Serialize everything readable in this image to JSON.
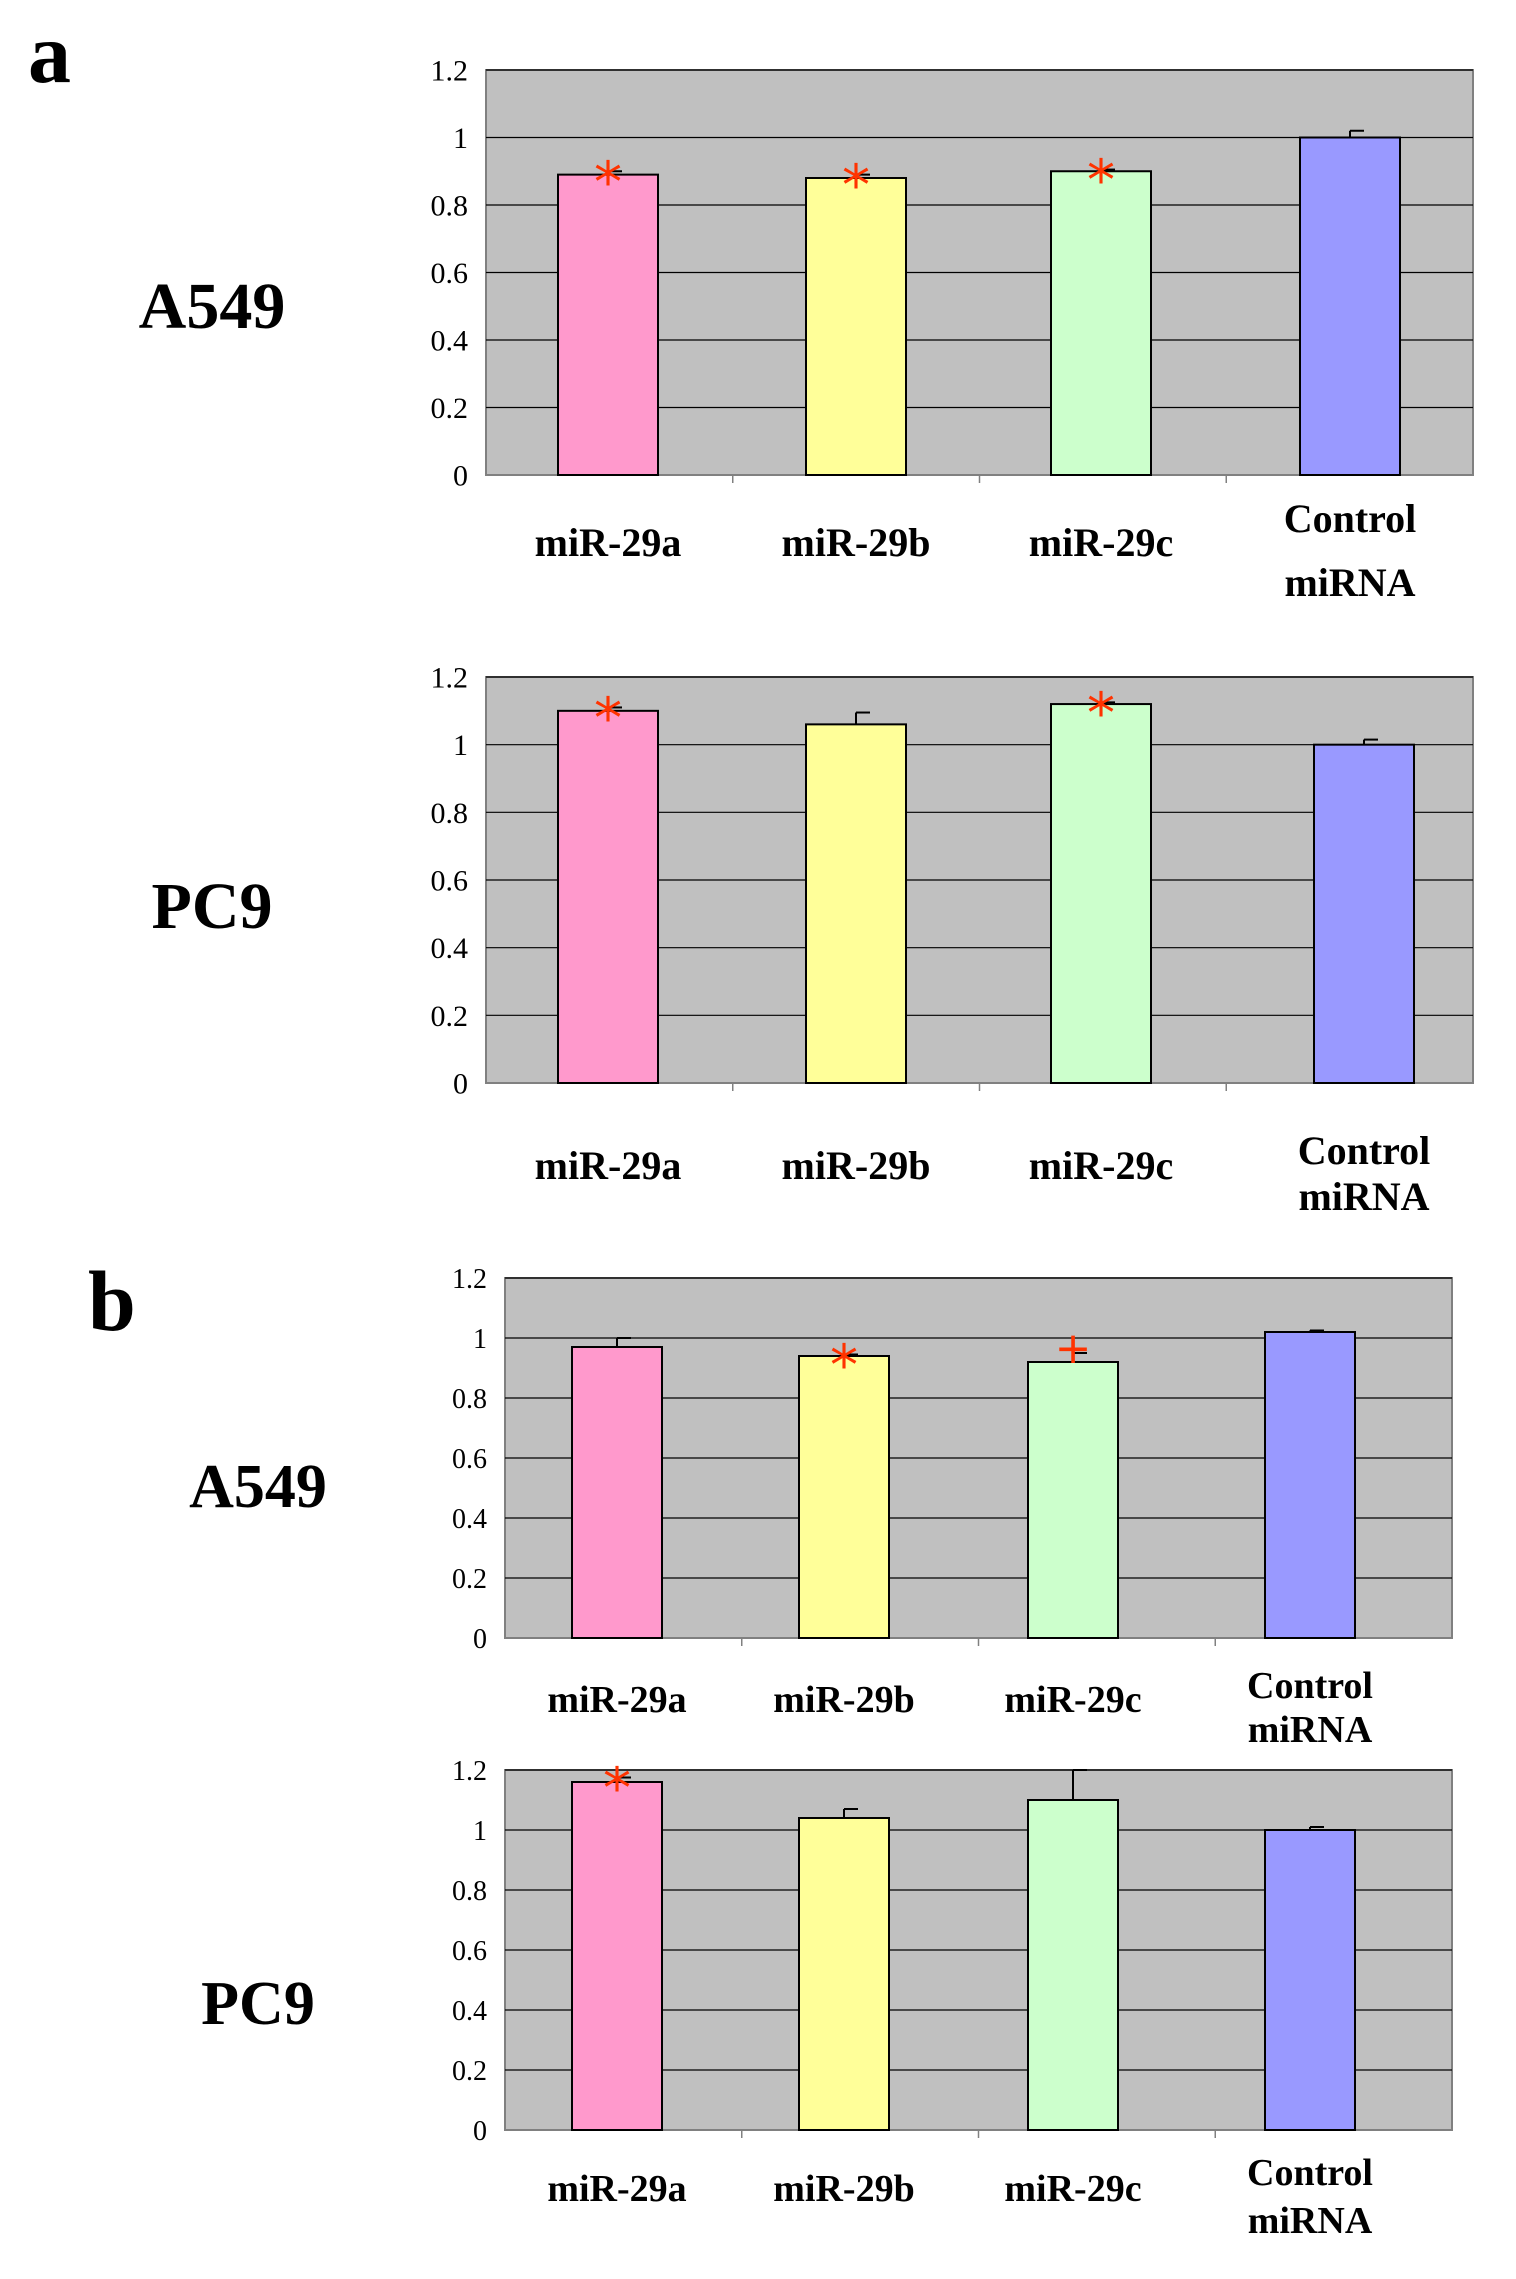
{
  "panels": [
    {
      "letter": "a"
    },
    {
      "letter": "b"
    }
  ],
  "chart_data": [
    {
      "type": "bar",
      "panel": "a",
      "cell_line": "A549",
      "categories": [
        "miR-29a",
        "miR-29b",
        "miR-29c",
        "Control miRNA"
      ],
      "values": [
        0.89,
        0.88,
        0.9,
        1.0
      ],
      "errors": [
        0.01,
        0.01,
        0.005,
        0.02
      ],
      "markers": [
        "*",
        "*",
        "*",
        ""
      ],
      "colors": [
        "#ff99cc",
        "#ffff99",
        "#ccffcc",
        "#9999ff"
      ],
      "yticks": [
        "0",
        "0.2",
        "0.4",
        "0.6",
        "0.8",
        "1",
        "1.2"
      ],
      "ylim": [
        0,
        1.2
      ],
      "grid": true,
      "plot_bg": "#c0c0c0",
      "marker_color": "#ff3300"
    },
    {
      "type": "bar",
      "panel": "a",
      "cell_line": "PC9",
      "categories": [
        "miR-29a",
        "miR-29b",
        "miR-29c",
        "Control miRNA"
      ],
      "values": [
        1.1,
        1.06,
        1.12,
        1.0
      ],
      "errors": [
        0.01,
        0.035,
        0.005,
        0.015
      ],
      "markers": [
        "*",
        "",
        "*",
        ""
      ],
      "colors": [
        "#ff99cc",
        "#ffff99",
        "#ccffcc",
        "#9999ff"
      ],
      "yticks": [
        "0",
        "0.2",
        "0.4",
        "0.6",
        "0.8",
        "1",
        "1.2"
      ],
      "ylim": [
        0,
        1.2
      ],
      "grid": true,
      "plot_bg": "#c0c0c0",
      "marker_color": "#ff3300"
    },
    {
      "type": "bar",
      "panel": "b",
      "cell_line": "A549",
      "categories": [
        "miR-29a",
        "miR-29b",
        "miR-29c",
        "Control miRNA"
      ],
      "values": [
        0.97,
        0.94,
        0.92,
        1.02
      ],
      "errors": [
        0.03,
        0.005,
        0.03,
        0.005
      ],
      "markers": [
        "",
        "*",
        "+",
        ""
      ],
      "colors": [
        "#ff99cc",
        "#ffff99",
        "#ccffcc",
        "#9999ff"
      ],
      "yticks": [
        "0",
        "0.2",
        "0.4",
        "0.6",
        "0.8",
        "1",
        "1.2"
      ],
      "ylim": [
        0,
        1.2
      ],
      "grid": true,
      "plot_bg": "#c0c0c0",
      "marker_color": "#ff3300"
    },
    {
      "type": "bar",
      "panel": "b",
      "cell_line": "PC9",
      "categories": [
        "miR-29a",
        "miR-29b",
        "miR-29c",
        "Control miRNA"
      ],
      "values": [
        1.16,
        1.04,
        1.1,
        1.0
      ],
      "errors": [
        0.015,
        0.03,
        0.1,
        0.01
      ],
      "markers": [
        "*",
        "",
        "",
        ""
      ],
      "colors": [
        "#ff99cc",
        "#ffff99",
        "#ccffcc",
        "#9999ff"
      ],
      "yticks": [
        "0",
        "0.2",
        "0.4",
        "0.6",
        "0.8",
        "1",
        "1.2"
      ],
      "ylim": [
        0,
        1.2
      ],
      "grid": true,
      "plot_bg": "#c0c0c0",
      "marker_color": "#ff3300"
    }
  ]
}
